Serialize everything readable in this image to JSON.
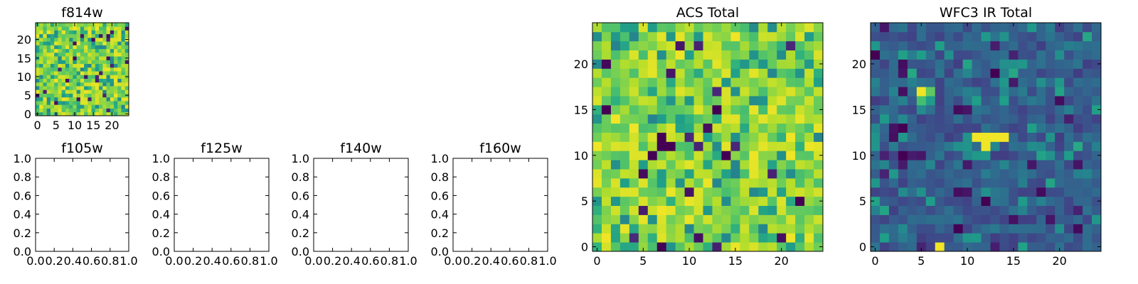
{
  "figure": {
    "background": "#ffffff"
  },
  "chart_data": [
    {
      "id": "f814w",
      "type": "heatmap",
      "title": "f814w",
      "grid_size": [
        25,
        25
      ],
      "xlim": [
        -0.5,
        24.5
      ],
      "ylim": [
        -0.5,
        24.5
      ],
      "xticks": [
        0,
        5,
        10,
        15,
        20
      ],
      "yticks": [
        0,
        5,
        10,
        15,
        20
      ],
      "colormap": "viridis",
      "values": "noise"
    },
    {
      "id": "f105w",
      "type": "heatmap",
      "title": "f105w",
      "xlim": [
        0.0,
        1.0
      ],
      "ylim": [
        0.0,
        1.0
      ],
      "xticks": [
        "0.0",
        "0.2",
        "0.4",
        "0.6",
        "0.8",
        "1.0"
      ],
      "yticks": [
        "0.0",
        "0.2",
        "0.4",
        "0.6",
        "0.8",
        "1.0"
      ],
      "values": []
    },
    {
      "id": "f125w",
      "type": "heatmap",
      "title": "f125w",
      "xlim": [
        0.0,
        1.0
      ],
      "ylim": [
        0.0,
        1.0
      ],
      "xticks": [
        "0.0",
        "0.2",
        "0.4",
        "0.6",
        "0.8",
        "1.0"
      ],
      "yticks": [
        "0.0",
        "0.2",
        "0.4",
        "0.6",
        "0.8",
        "1.0"
      ],
      "values": []
    },
    {
      "id": "f140w",
      "type": "heatmap",
      "title": "f140w",
      "xlim": [
        0.0,
        1.0
      ],
      "ylim": [
        0.0,
        1.0
      ],
      "xticks": [
        "0.0",
        "0.2",
        "0.4",
        "0.6",
        "0.8",
        "1.0"
      ],
      "yticks": [
        "0.0",
        "0.2",
        "0.4",
        "0.6",
        "0.8",
        "1.0"
      ],
      "values": []
    },
    {
      "id": "f160w",
      "type": "heatmap",
      "title": "f160w",
      "xlim": [
        0.0,
        1.0
      ],
      "ylim": [
        0.0,
        1.0
      ],
      "xticks": [
        "0.0",
        "0.2",
        "0.4",
        "0.6",
        "0.8",
        "1.0"
      ],
      "yticks": [
        "0.0",
        "0.2",
        "0.4",
        "0.6",
        "0.8",
        "1.0"
      ],
      "values": []
    },
    {
      "id": "acs",
      "type": "heatmap",
      "title": "ACS Total",
      "grid_size": [
        25,
        25
      ],
      "xlim": [
        -0.5,
        24.5
      ],
      "ylim": [
        -0.5,
        24.5
      ],
      "xticks": [
        0,
        5,
        10,
        15,
        20
      ],
      "yticks": [
        0,
        5,
        10,
        15,
        20
      ],
      "colormap": "viridis",
      "values": "noise",
      "highlights": [
        {
          "x": 20,
          "y": 5,
          "value": 0.95
        },
        {
          "x": 11,
          "y": 15,
          "value": 0.95
        },
        {
          "x": 4,
          "y": 6,
          "value": 0.95
        },
        {
          "x": 5,
          "y": 10,
          "value": 0.95
        },
        {
          "x": 23,
          "y": 24,
          "value": 0.95
        },
        {
          "x": 13,
          "y": 15,
          "value": 0.0
        },
        {
          "x": 14,
          "y": 10,
          "value": 0.0
        },
        {
          "x": 7,
          "y": 12,
          "value": 0.0
        },
        {
          "x": 8,
          "y": 11,
          "value": 0.0
        },
        {
          "x": 7,
          "y": 11,
          "value": 0.0
        },
        {
          "x": 22,
          "y": 5,
          "value": 0.0
        },
        {
          "x": 1,
          "y": 15,
          "value": 0.0
        },
        {
          "x": 7,
          "y": 0,
          "value": 0.0
        },
        {
          "x": 6,
          "y": 10,
          "value": 0.0
        }
      ]
    },
    {
      "id": "wfc3",
      "type": "heatmap",
      "title": "WFC3 IR Total",
      "grid_size": [
        25,
        25
      ],
      "xlim": [
        -0.5,
        24.5
      ],
      "ylim": [
        -0.5,
        24.5
      ],
      "xticks": [
        0,
        5,
        10,
        15,
        20
      ],
      "yticks": [
        0,
        5,
        10,
        15,
        20
      ],
      "colormap": "viridis",
      "values": "noise",
      "highlights": [
        {
          "x": 5,
          "y": 17,
          "value": 0.98
        },
        {
          "x": 6,
          "y": 17,
          "value": 0.75
        },
        {
          "x": 5,
          "y": 16,
          "value": 0.7
        },
        {
          "x": 11,
          "y": 12,
          "value": 0.98
        },
        {
          "x": 12,
          "y": 12,
          "value": 0.98
        },
        {
          "x": 13,
          "y": 12,
          "value": 0.98
        },
        {
          "x": 14,
          "y": 12,
          "value": 0.98
        },
        {
          "x": 12,
          "y": 11,
          "value": 0.98
        },
        {
          "x": 7,
          "y": 0,
          "value": 0.98
        },
        {
          "x": 0,
          "y": 21,
          "value": 0.0
        },
        {
          "x": 3,
          "y": 13,
          "value": 0.0
        },
        {
          "x": 3,
          "y": 10,
          "value": 0.0
        },
        {
          "x": 12,
          "y": 5,
          "value": 0.0
        },
        {
          "x": 13,
          "y": 19,
          "value": 0.0
        },
        {
          "x": 9,
          "y": 2,
          "value": 0.0
        }
      ]
    }
  ]
}
